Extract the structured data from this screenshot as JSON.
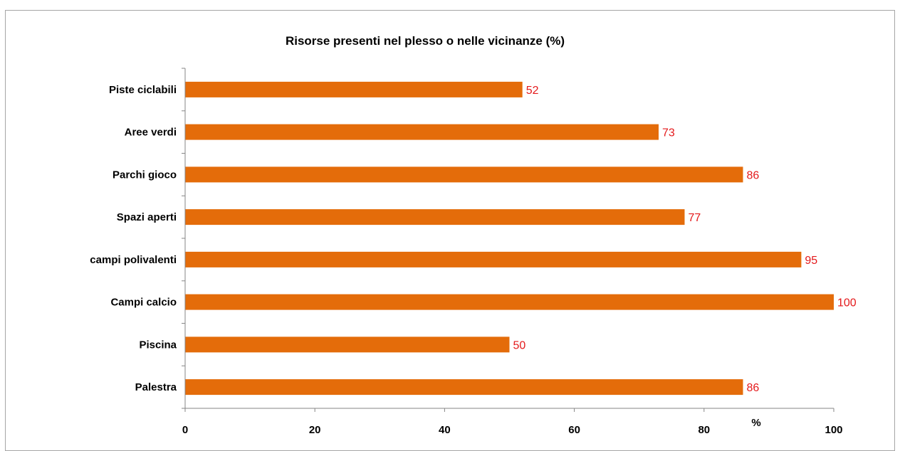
{
  "chart_data": {
    "type": "bar",
    "orientation": "horizontal",
    "title": "Risorse presenti nel plesso o nelle vicinanze (%)",
    "xlabel": "%",
    "ylabel": "",
    "categories": [
      "Piste ciclabili",
      "Aree verdi",
      "Parchi gioco",
      "Spazi aperti",
      "campi polivalenti",
      "Campi calcio",
      "Piscina",
      "Palestra"
    ],
    "values": [
      52,
      73,
      86,
      77,
      95,
      100,
      50,
      86
    ],
    "xlim": [
      0,
      100
    ],
    "xticks": [
      0,
      20,
      40,
      60,
      80,
      100
    ],
    "grid": false,
    "legend": false,
    "colors": {
      "bar": "#e46c0a",
      "data_label": "#e41a1c",
      "axis": "#868686",
      "border": "#a6a6a6"
    }
  }
}
